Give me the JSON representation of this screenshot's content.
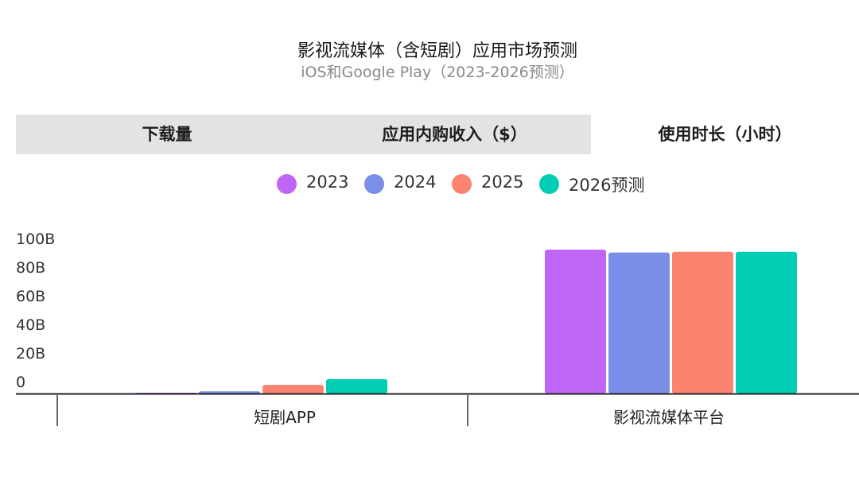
{
  "header": {
    "title": "影视流媒体（含短剧）应用市场预测",
    "subtitle": "iOS和Google Play（2023-2026预测）"
  },
  "tabs": [
    {
      "label": "下载量",
      "active": false
    },
    {
      "label": "应用内购收入（$）",
      "active": false
    },
    {
      "label": "使用时长（小时）",
      "active": true
    }
  ],
  "colors": {
    "2023": "#c066f7",
    "2024": "#7b8ee8",
    "2025": "#fb8470",
    "2026预测": "#00cdb4",
    "tab_bg": "#e3e3e3",
    "axis": "#222222"
  },
  "chart_data": {
    "type": "bar",
    "categories": [
      "短剧APP",
      "影视流媒体平台"
    ],
    "series": [
      {
        "name": "2023",
        "values": [
          0.5,
          100
        ]
      },
      {
        "name": "2024",
        "values": [
          1.5,
          98
        ]
      },
      {
        "name": "2025",
        "values": [
          6,
          98.5
        ]
      },
      {
        "name": "2026预测",
        "values": [
          10,
          98.5
        ]
      }
    ],
    "y_ticks": [
      "100B",
      "80B",
      "60B",
      "40B",
      "20B",
      "0"
    ],
    "ylim": [
      0,
      100
    ],
    "legend_position": "top",
    "grid": false
  }
}
